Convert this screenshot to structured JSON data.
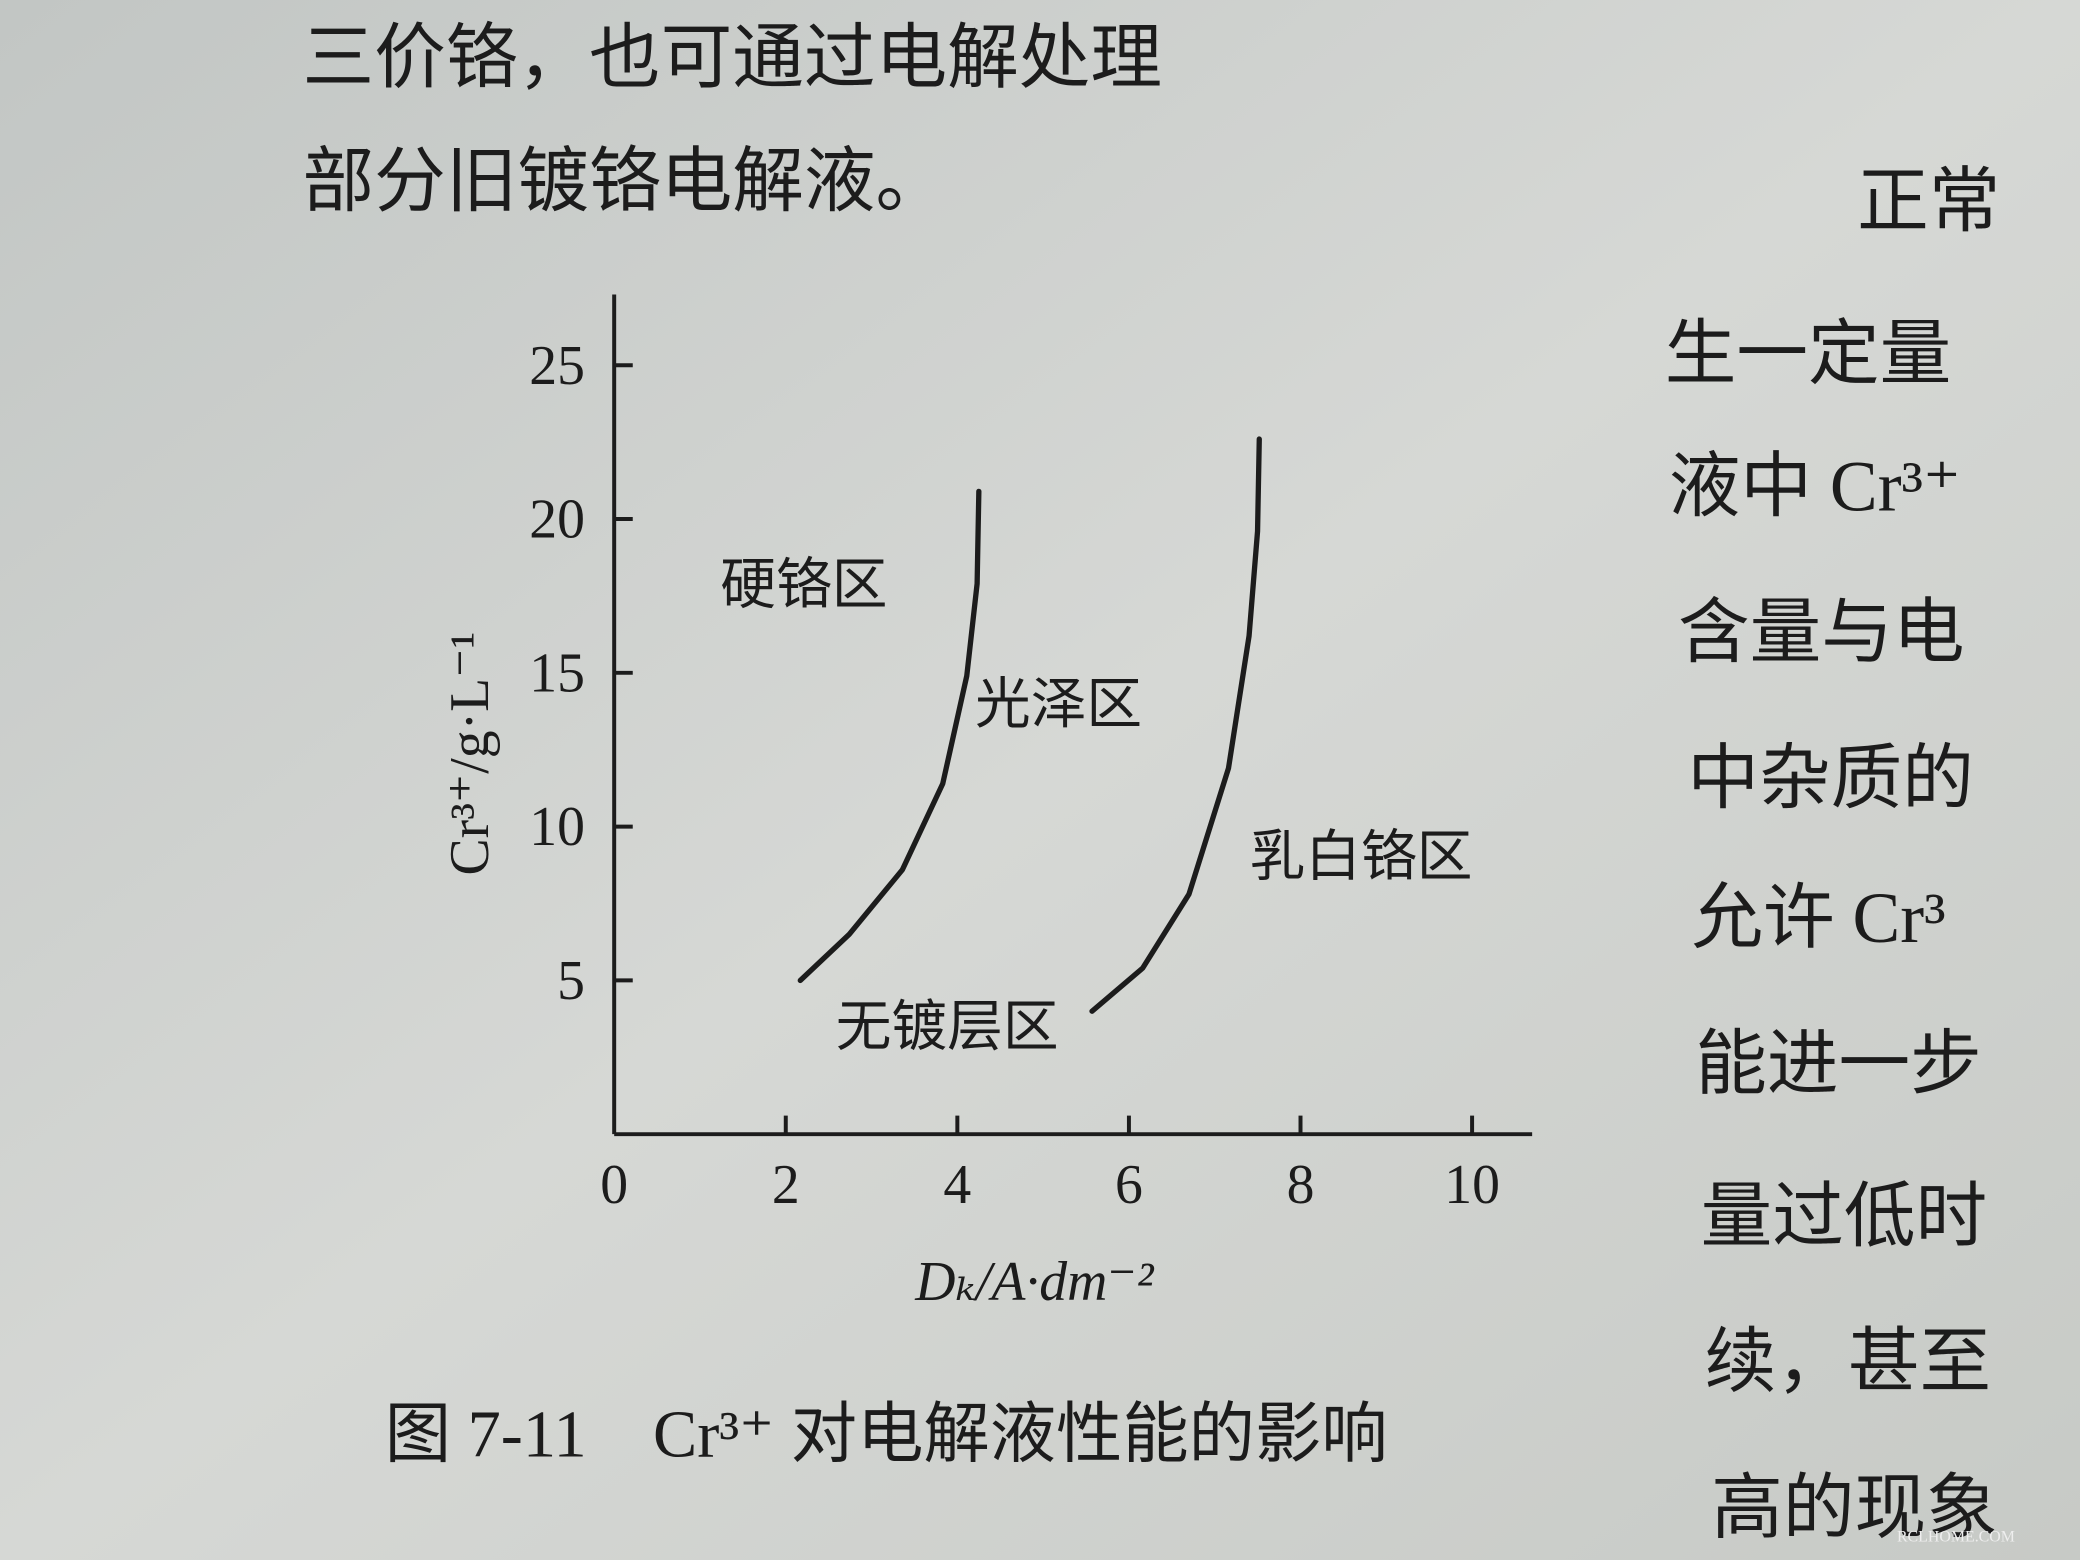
{
  "top_text": [
    "三价铬，也可通过电解处理",
    "部分旧镀铬电解液。"
  ],
  "right_text": [
    "正常",
    "生一定量",
    "液中 Cr³⁺",
    "含量与电",
    "中杂质的",
    "允许 Cr³",
    "能进一步",
    "量过低时",
    "续，甚至",
    "高的现象"
  ],
  "caption": "图 7-11　Cr³⁺ 对电解液性能的影响",
  "watermark": "RCLHOME.COM",
  "chart_data": {
    "type": "line",
    "x_label": "Dₖ/A·dm⁻²",
    "y_label": "Cr³⁺/g·L⁻¹",
    "annotations": [
      "硬铬区",
      "光泽区",
      "乳白铬区",
      "无镀层区"
    ],
    "xlim": [
      0,
      10.7
    ],
    "ylim": [
      0,
      27.3
    ],
    "xticks": [
      0,
      2,
      4,
      6,
      8,
      10
    ],
    "yticks": [
      5,
      10,
      15,
      20,
      25
    ],
    "series": [
      {
        "color": "#1c1c1c",
        "x": [
          2.17,
          2.74,
          3.36,
          3.83,
          4.11,
          4.23,
          4.25
        ],
        "values": [
          5.0,
          6.5,
          8.6,
          11.4,
          14.9,
          17.9,
          20.9
        ]
      },
      {
        "color": "#1c1c1c",
        "x": [
          5.57,
          6.16,
          6.7,
          7.16,
          7.4,
          7.5,
          7.52
        ],
        "values": [
          4.0,
          5.4,
          7.8,
          11.9,
          16.2,
          19.6,
          22.6
        ]
      }
    ]
  }
}
